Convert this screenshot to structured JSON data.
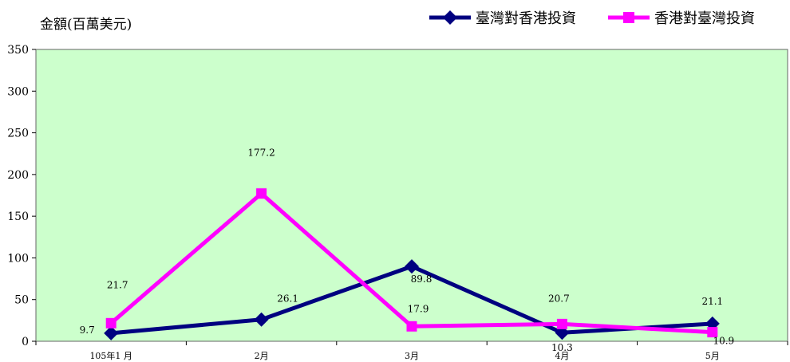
{
  "chart_data": {
    "type": "line",
    "ylabel": "金額(百萬美元)",
    "categories": [
      "105年1 月",
      "2月",
      "3月",
      "4月",
      "5月"
    ],
    "ylim": [
      0,
      350
    ],
    "yticks": [
      0,
      50,
      100,
      150,
      200,
      250,
      300,
      350
    ],
    "grid": false,
    "legend_position": "top-right",
    "series": [
      {
        "name": "臺灣對香港投資",
        "values": [
          9.7,
          26.1,
          89.8,
          10.3,
          21.1
        ],
        "labels": [
          "9.7",
          "26.1",
          "89.8",
          "10.3",
          "21.1"
        ],
        "color": "#000080",
        "marker": "diamond"
      },
      {
        "name": "香港對臺灣投資",
        "values": [
          21.7,
          177.2,
          17.9,
          20.7,
          10.9
        ],
        "labels": [
          "21.7",
          "177.2",
          "17.9",
          "20.7",
          "10.9"
        ],
        "color": "#ff00ff",
        "marker": "square"
      }
    ],
    "plot_background": "#ccffcc"
  }
}
